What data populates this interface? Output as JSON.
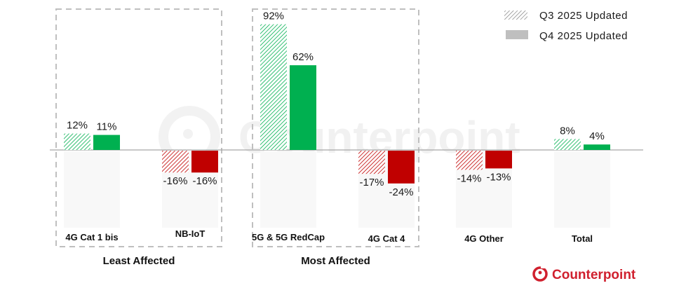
{
  "chart_data": {
    "type": "bar",
    "title": "",
    "xlabel": "",
    "ylabel": "",
    "ylim": [
      -55,
      92
    ],
    "grid": false,
    "legend_position": "top-right",
    "categories": [
      "4G Cat 1 bis",
      "NB-IoT",
      "5G & 5G RedCap",
      "4G Cat 4",
      "4G Other",
      "Total"
    ],
    "series": [
      {
        "name": "Q3 2025 Updated",
        "style": "hatched",
        "values": [
          12,
          -16,
          92,
          -17,
          -14,
          8
        ],
        "labels": [
          "12%",
          "-16%",
          "92%",
          "-17%",
          "-14%",
          "8%"
        ]
      },
      {
        "name": "Q4 2025 Updated",
        "style": "solid",
        "values": [
          11,
          -16,
          62,
          -24,
          -13,
          4
        ],
        "labels": [
          "11%",
          "-16%",
          "62%",
          "-24%",
          "-13%",
          "4%"
        ]
      }
    ],
    "groups": [
      {
        "label": "Least Affected",
        "categories": [
          "4G Cat 1 bis",
          "NB-IoT"
        ]
      },
      {
        "label": "Most Affected",
        "categories": [
          "5G & 5G RedCap",
          "4G Cat 4"
        ]
      }
    ],
    "colors": {
      "positive": "#00b050",
      "negative": "#c00000",
      "legend_swatch": "#bfbfbf",
      "axis": "#a6a6a6",
      "group_border": "#bfbfbf",
      "column_bg": "#f8f8f8"
    }
  },
  "legend": [
    {
      "label": "Q3 2025 Updated",
      "icon": "hatched-swatch"
    },
    {
      "label": "Q4 2025 Updated",
      "icon": "solid-swatch"
    }
  ],
  "watermark": {
    "text": "Counterpoint"
  },
  "brand": {
    "logo_text": "Counterpoint",
    "color": "#d0202e"
  }
}
